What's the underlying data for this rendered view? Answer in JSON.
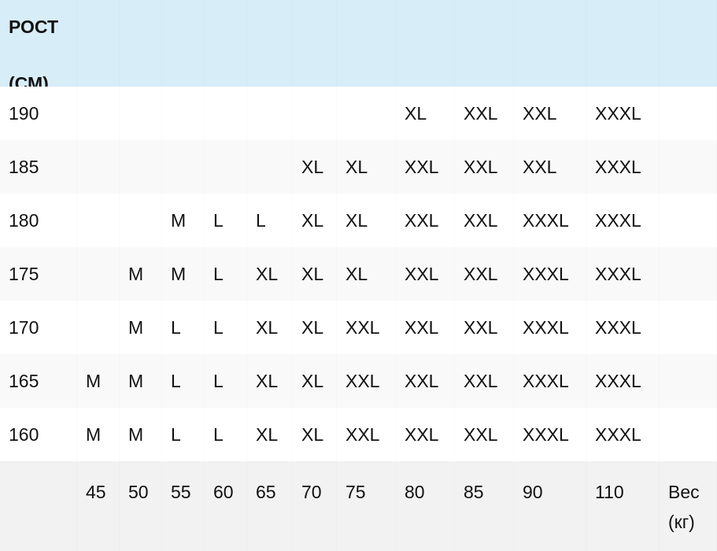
{
  "header": {
    "height_label_line1": "РОСТ",
    "height_label_line2": "(СМ)"
  },
  "rows": [
    {
      "height": "190",
      "sizes": [
        "",
        "",
        "",
        "",
        "",
        "",
        "",
        "XL",
        "XXL",
        "XXL",
        "XXXL",
        ""
      ]
    },
    {
      "height": "185",
      "sizes": [
        "",
        "",
        "",
        "",
        "",
        "XL",
        "XL",
        "XXL",
        "XXL",
        "XXL",
        "XXXL",
        ""
      ]
    },
    {
      "height": "180",
      "sizes": [
        "",
        "",
        "M",
        "L",
        "L",
        "XL",
        "XL",
        "XXL",
        "XXL",
        "XXXL",
        "XXXL",
        ""
      ]
    },
    {
      "height": "175",
      "sizes": [
        "",
        "M",
        "M",
        "L",
        "XL",
        "XL",
        "XL",
        "XXL",
        "XXL",
        "XXXL",
        "XXXL",
        ""
      ]
    },
    {
      "height": "170",
      "sizes": [
        "",
        "M",
        "L",
        "L",
        "XL",
        "XL",
        "XXL",
        "XXL",
        "XXL",
        "XXXL",
        "XXXL",
        ""
      ]
    },
    {
      "height": "165",
      "sizes": [
        "M",
        "M",
        "L",
        "L",
        "XL",
        "XL",
        "XXL",
        "XXL",
        "XXL",
        "XXXL",
        "XXXL",
        ""
      ]
    },
    {
      "height": "160",
      "sizes": [
        "M",
        "M",
        "L",
        "L",
        "XL",
        "XL",
        "XXL",
        "XXL",
        "XXL",
        "XXXL",
        "XXXL",
        ""
      ]
    }
  ],
  "footer": {
    "weights": [
      "45",
      "50",
      "55",
      "60",
      "65",
      "70",
      "75",
      "80",
      "85",
      "90",
      "110"
    ],
    "weight_label_line1": "Вес",
    "weight_label_line2": "(кг)"
  },
  "colors": {
    "header_bg": "#d7edf8",
    "row_alt_bg": "#f9f9f9",
    "footer_bg": "#f2f2f2"
  }
}
